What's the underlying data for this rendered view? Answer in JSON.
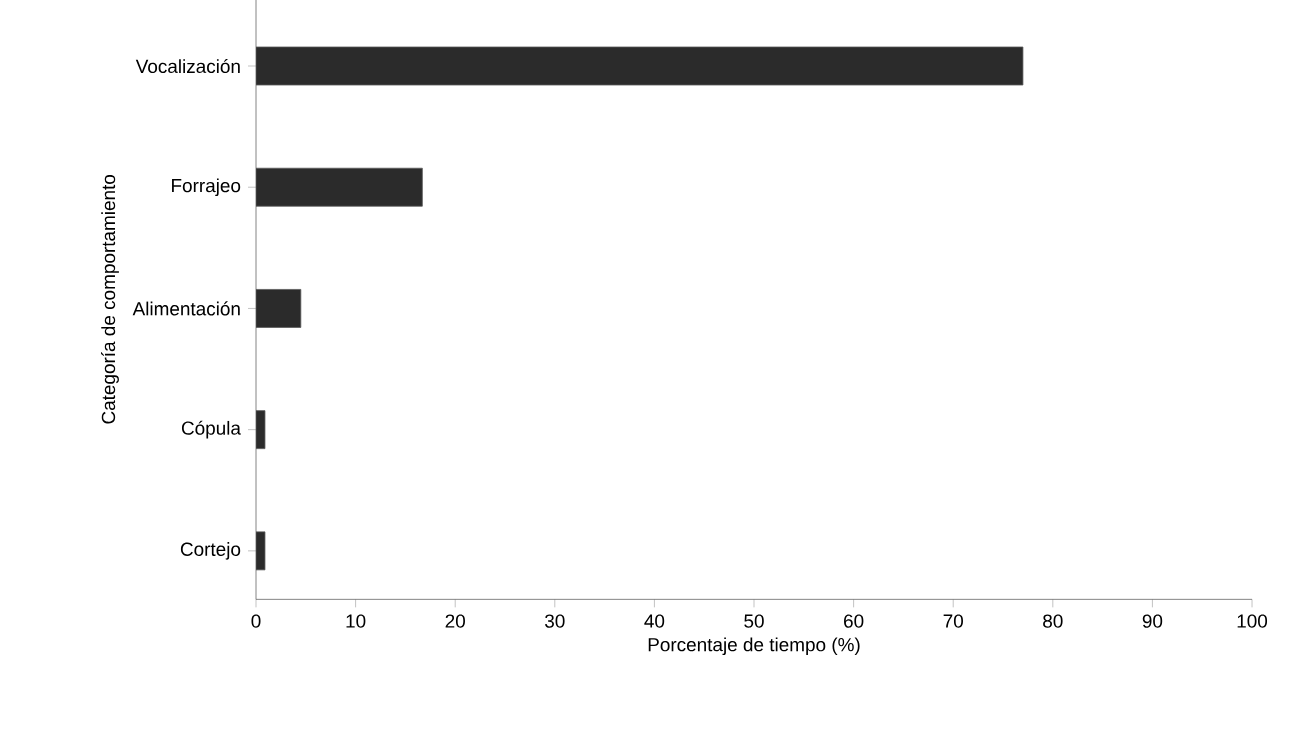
{
  "chart_data": {
    "type": "bar",
    "orientation": "horizontal",
    "xlabel": "Porcentaje de tiempo (%)",
    "ylabel": "Categoría de comportamiento",
    "categories": [
      "Vocalización",
      "Forrajeo",
      "Alimentación",
      "Cópula",
      "Cortejo"
    ],
    "values": [
      77,
      16.7,
      4.5,
      0.9,
      0.9
    ],
    "color": "#2b2b2b",
    "xlim": [
      0,
      100
    ],
    "xticks": [
      0,
      10,
      20,
      30,
      40,
      50,
      60,
      70,
      80,
      90,
      100
    ],
    "grid": false
  }
}
